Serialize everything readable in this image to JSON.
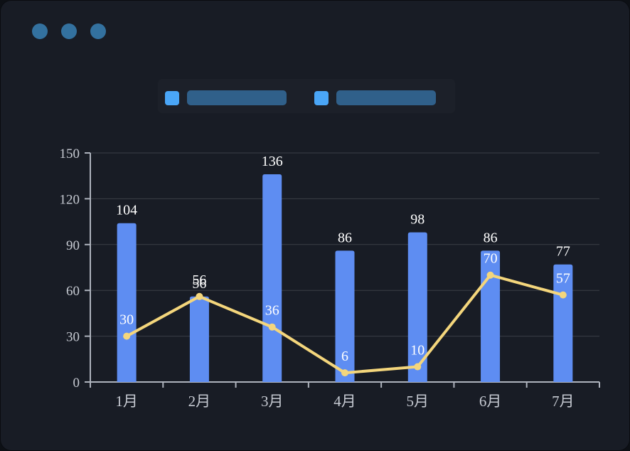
{
  "window": {
    "controls": [
      {
        "name": "window-dot-1"
      },
      {
        "name": "window-dot-2"
      },
      {
        "name": "window-dot-3"
      }
    ]
  },
  "legend": {
    "items": [
      {
        "label": "",
        "redacted_placeholder": true
      },
      {
        "label": "",
        "redacted_placeholder": true
      }
    ]
  },
  "colors": {
    "page": "#0d1015",
    "window_background": "#181c25",
    "window_dot": "#33719f",
    "legend_swatch": "#4aa6f7",
    "legend_placeholder": "#30608a",
    "bar": "#5e8df2",
    "line": "#f4d67c",
    "grid": "#3a3e47",
    "axis": "#aeb3bd",
    "axis_text": "#c6cad2",
    "value_text": "#ffffff"
  },
  "chart_data": {
    "type": "bar",
    "categories": [
      "1月",
      "2月",
      "3月",
      "4月",
      "5月",
      "6月",
      "7月"
    ],
    "series": [
      {
        "name": "bar-series",
        "type": "bar",
        "color": "#5e8df2",
        "values": [
          104,
          56,
          136,
          86,
          98,
          86,
          77
        ]
      },
      {
        "name": "line-series",
        "type": "line",
        "color": "#f4d67c",
        "values": [
          30,
          56,
          36,
          6,
          10,
          70,
          57
        ]
      }
    ],
    "title": "",
    "xlabel": "",
    "ylabel": "",
    "ylim": [
      0,
      150
    ],
    "yticks": [
      0,
      30,
      60,
      90,
      120,
      150
    ],
    "grid": true,
    "value_labels": true,
    "legend_position": "top"
  }
}
